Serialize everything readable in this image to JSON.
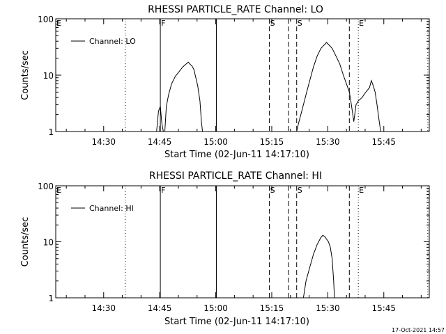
{
  "footer_timestamp": "17-Oct-2021 14:57",
  "chart_data": [
    {
      "type": "line",
      "title": "RHESSI PARTICLE_RATE Channel: LO",
      "xlabel": "Start Time (02-Jun-11 14:17:10)",
      "ylabel": "Counts/sec",
      "yscale": "log",
      "xlim_minutes_from_start": [
        0,
        100
      ],
      "ylim": [
        1,
        100
      ],
      "x_ticks": [
        {
          "min": 12.83,
          "label": "14:30"
        },
        {
          "min": 27.83,
          "label": "14:45"
        },
        {
          "min": 42.83,
          "label": "15:00"
        },
        {
          "min": 57.83,
          "label": "15:15"
        },
        {
          "min": 72.83,
          "label": "15:30"
        },
        {
          "min": 87.83,
          "label": "15:45"
        }
      ],
      "y_ticks": [
        {
          "value": 1,
          "label": "1"
        },
        {
          "value": 10,
          "label": "10"
        },
        {
          "value": 100,
          "label": "100"
        }
      ],
      "legend": {
        "label": "Channel: LO",
        "position": "top-left"
      },
      "markers": [
        {
          "min": 0.0,
          "style": "dotted",
          "label": "E"
        },
        {
          "min": 18.6,
          "style": "dotted",
          "label": ""
        },
        {
          "min": 28.0,
          "style": "solid",
          "label": "F"
        },
        {
          "min": 43.0,
          "style": "solid",
          "label": ""
        },
        {
          "min": 57.2,
          "style": "dashed",
          "label": "S"
        },
        {
          "min": 62.3,
          "style": "dashed",
          "label": ""
        },
        {
          "min": 64.5,
          "style": "dashed",
          "label": "S"
        },
        {
          "min": 78.6,
          "style": "dashed",
          "label": ""
        },
        {
          "min": 81.0,
          "style": "dotted",
          "label": "E"
        },
        {
          "min": 99.6,
          "style": "dotted",
          "label": ""
        }
      ],
      "series": [
        {
          "name": "Channel: LO",
          "segments": [
            [
              [
                27.0,
                1.0
              ],
              [
                27.5,
                2.3
              ],
              [
                28.0,
                2.8
              ],
              [
                28.4,
                1.4
              ],
              [
                28.8,
                1.0
              ]
            ],
            [
              [
                29.2,
                1.0
              ],
              [
                29.6,
                2.8
              ],
              [
                30.2,
                4.5
              ],
              [
                31.0,
                7.0
              ],
              [
                32.0,
                9.5
              ],
              [
                33.0,
                11.5
              ],
              [
                34.0,
                14.0
              ],
              [
                35.0,
                16.0
              ],
              [
                35.5,
                17.0
              ],
              [
                36.0,
                15.5
              ],
              [
                36.5,
                14.5
              ],
              [
                37.0,
                12.5
              ],
              [
                37.5,
                9.0
              ],
              [
                38.0,
                6.5
              ],
              [
                38.6,
                3.5
              ],
              [
                39.0,
                1.5
              ],
              [
                39.3,
                1.0
              ]
            ],
            [
              [
                64.5,
                1.0
              ],
              [
                65.0,
                1.4
              ],
              [
                66.0,
                2.5
              ],
              [
                67.0,
                4.5
              ],
              [
                68.0,
                8.0
              ],
              [
                69.0,
                14.0
              ],
              [
                70.0,
                22.0
              ],
              [
                71.0,
                30.0
              ],
              [
                72.0,
                35.0
              ],
              [
                72.5,
                38.0
              ],
              [
                73.0,
                35.0
              ],
              [
                74.0,
                30.0
              ],
              [
                75.0,
                22.0
              ],
              [
                76.0,
                16.0
              ],
              [
                77.0,
                10.0
              ],
              [
                78.0,
                6.5
              ],
              [
                78.6,
                5.0
              ],
              [
                79.0,
                3.5
              ],
              [
                79.8,
                1.5
              ],
              [
                80.4,
                3.0
              ],
              [
                81.0,
                3.5
              ],
              [
                82.0,
                4.0
              ],
              [
                83.0,
                5.0
              ],
              [
                84.0,
                6.0
              ],
              [
                84.5,
                8.0
              ],
              [
                85.0,
                6.5
              ],
              [
                85.5,
                5.0
              ],
              [
                86.0,
                3.0
              ],
              [
                86.6,
                1.5
              ],
              [
                87.0,
                1.0
              ]
            ]
          ]
        }
      ]
    },
    {
      "type": "line",
      "title": "RHESSI PARTICLE_RATE Channel: HI",
      "xlabel": "Start Time (02-Jun-11 14:17:10)",
      "ylabel": "Counts/sec",
      "yscale": "log",
      "xlim_minutes_from_start": [
        0,
        100
      ],
      "ylim": [
        1,
        100
      ],
      "x_ticks": [
        {
          "min": 12.83,
          "label": "14:30"
        },
        {
          "min": 27.83,
          "label": "14:45"
        },
        {
          "min": 42.83,
          "label": "15:00"
        },
        {
          "min": 57.83,
          "label": "15:15"
        },
        {
          "min": 72.83,
          "label": "15:30"
        },
        {
          "min": 87.83,
          "label": "15:45"
        }
      ],
      "y_ticks": [
        {
          "value": 1,
          "label": "1"
        },
        {
          "value": 10,
          "label": "10"
        },
        {
          "value": 100,
          "label": "100"
        }
      ],
      "legend": {
        "label": "Channel: HI",
        "position": "top-left"
      },
      "markers": [
        {
          "min": 0.0,
          "style": "dotted",
          "label": "E"
        },
        {
          "min": 18.6,
          "style": "dotted",
          "label": ""
        },
        {
          "min": 28.0,
          "style": "solid",
          "label": "F"
        },
        {
          "min": 43.0,
          "style": "solid",
          "label": ""
        },
        {
          "min": 57.2,
          "style": "dashed",
          "label": "S"
        },
        {
          "min": 62.3,
          "style": "dashed",
          "label": ""
        },
        {
          "min": 64.5,
          "style": "dashed",
          "label": "S"
        },
        {
          "min": 78.6,
          "style": "dashed",
          "label": ""
        },
        {
          "min": 81.0,
          "style": "dotted",
          "label": "E"
        },
        {
          "min": 99.6,
          "style": "dotted",
          "label": ""
        }
      ],
      "series": [
        {
          "name": "Channel: HI",
          "segments": [
            [
              [
                66.3,
                1.0
              ],
              [
                67.0,
                2.0
              ],
              [
                68.0,
                3.5
              ],
              [
                69.0,
                6.0
              ],
              [
                70.0,
                9.0
              ],
              [
                71.0,
                12.0
              ],
              [
                71.5,
                13.0
              ],
              [
                72.0,
                12.5
              ],
              [
                73.0,
                10.0
              ],
              [
                73.5,
                8.0
              ],
              [
                74.0,
                5.0
              ],
              [
                74.4,
                2.0
              ],
              [
                74.6,
                1.0
              ]
            ]
          ]
        }
      ]
    }
  ]
}
